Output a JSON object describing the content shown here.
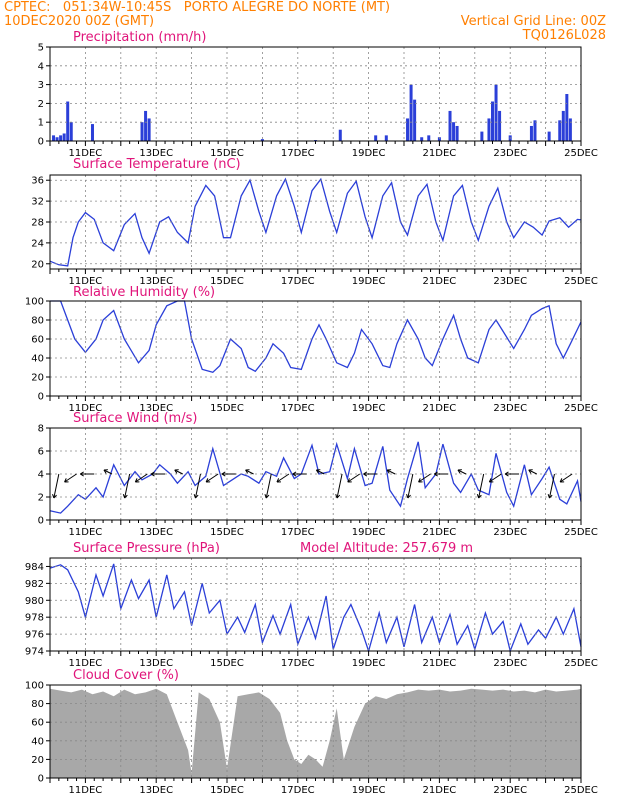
{
  "header": {
    "line1_left": "CPTEC:   051:34W-10:45S   PORTO ALEGRE DO NORTE (MT)",
    "line2_left": "10DEC2020 00Z (GMT)",
    "line2_right": "Vertical Grid Line: 00Z",
    "line3_right": "TQ0126L028"
  },
  "colors": {
    "header": "#ff7f00",
    "title": "#e0147a",
    "line": "#2b3fd8",
    "bar": "#2b3fd8",
    "cloud": "#a8a8a8"
  },
  "x_ticks": [
    "11DEC",
    "13DEC",
    "15DEC",
    "17DEC",
    "19DEC",
    "21DEC",
    "23DEC",
    "25DEC"
  ],
  "chart_data": [
    {
      "type": "bar",
      "title": "Precipitation (mm/h)",
      "ylim": [
        0,
        5
      ],
      "yticks": [
        0,
        1,
        2,
        3,
        4,
        5
      ],
      "x_range_days": [
        10.0,
        25.0
      ],
      "points": [
        [
          10.1,
          0.3
        ],
        [
          10.2,
          0.2
        ],
        [
          10.3,
          0.3
        ],
        [
          10.4,
          0.4
        ],
        [
          10.5,
          2.1
        ],
        [
          10.6,
          1.0
        ],
        [
          11.2,
          0.9
        ],
        [
          12.6,
          1.0
        ],
        [
          12.7,
          1.6
        ],
        [
          12.8,
          1.2
        ],
        [
          16.0,
          0.1
        ],
        [
          17.5,
          0.05
        ],
        [
          18.2,
          0.6
        ],
        [
          19.2,
          0.3
        ],
        [
          19.5,
          0.3
        ],
        [
          20.1,
          1.2
        ],
        [
          20.2,
          3.0
        ],
        [
          20.3,
          2.2
        ],
        [
          20.5,
          0.2
        ],
        [
          20.7,
          0.3
        ],
        [
          21.0,
          0.2
        ],
        [
          21.3,
          1.6
        ],
        [
          21.4,
          1.0
        ],
        [
          21.5,
          0.8
        ],
        [
          22.2,
          0.5
        ],
        [
          22.4,
          1.2
        ],
        [
          22.5,
          2.1
        ],
        [
          22.6,
          3.0
        ],
        [
          22.7,
          1.6
        ],
        [
          23.0,
          0.3
        ],
        [
          23.6,
          0.8
        ],
        [
          23.7,
          1.1
        ],
        [
          24.1,
          0.5
        ],
        [
          24.4,
          1.1
        ],
        [
          24.5,
          1.6
        ],
        [
          24.6,
          2.5
        ],
        [
          24.7,
          1.2
        ]
      ]
    },
    {
      "type": "line",
      "title": "Surface Temperature (nC)",
      "ylim": [
        19,
        37
      ],
      "yticks": [
        20,
        24,
        28,
        32,
        36
      ],
      "x": [
        10.0,
        10.25,
        10.5,
        10.65,
        10.8,
        11.0,
        11.25,
        11.5,
        11.8,
        12.1,
        12.4,
        12.6,
        12.8,
        13.1,
        13.35,
        13.6,
        13.9,
        14.1,
        14.4,
        14.65,
        14.9,
        15.1,
        15.4,
        15.65,
        15.9,
        16.1,
        16.4,
        16.65,
        16.9,
        17.1,
        17.4,
        17.65,
        17.9,
        18.1,
        18.4,
        18.65,
        18.9,
        19.1,
        19.4,
        19.65,
        19.9,
        20.1,
        20.4,
        20.65,
        20.9,
        21.1,
        21.4,
        21.65,
        21.9,
        22.1,
        22.4,
        22.65,
        22.9,
        23.1,
        23.4,
        23.65,
        23.9,
        24.1,
        24.4,
        24.65,
        24.9,
        25.0
      ],
      "y": [
        20.5,
        19.8,
        19.6,
        25.0,
        28.0,
        29.8,
        28.5,
        24.0,
        22.5,
        27.5,
        29.6,
        25.0,
        22.0,
        28.0,
        29.0,
        26.0,
        24.0,
        31.0,
        35.0,
        33.0,
        25.0,
        25.0,
        33.0,
        36.0,
        30.0,
        26.0,
        33.0,
        36.2,
        31.0,
        26.0,
        34.0,
        36.2,
        30.0,
        26.0,
        33.5,
        35.8,
        29.0,
        25.0,
        33.0,
        35.5,
        28.0,
        25.5,
        33.0,
        35.2,
        28.0,
        24.5,
        33.0,
        35.0,
        28.0,
        24.5,
        31.0,
        34.5,
        28.0,
        25.0,
        28.0,
        27.0,
        25.5,
        28.2,
        28.8,
        27.0,
        28.5,
        28.4
      ]
    },
    {
      "type": "line",
      "title": "Relative Humidity (%)",
      "ylim": [
        0,
        100
      ],
      "yticks": [
        0,
        20,
        40,
        60,
        80,
        100
      ],
      "x": [
        10.0,
        10.3,
        10.5,
        10.7,
        11.0,
        11.3,
        11.5,
        11.8,
        12.1,
        12.5,
        12.8,
        13.0,
        13.3,
        13.6,
        13.8,
        14.0,
        14.3,
        14.6,
        14.8,
        15.1,
        15.4,
        15.6,
        15.8,
        16.1,
        16.3,
        16.6,
        16.8,
        17.1,
        17.4,
        17.6,
        17.8,
        18.1,
        18.4,
        18.6,
        18.8,
        19.1,
        19.4,
        19.6,
        19.8,
        20.1,
        20.4,
        20.6,
        20.8,
        21.1,
        21.4,
        21.6,
        21.8,
        22.1,
        22.4,
        22.6,
        22.8,
        23.1,
        23.4,
        23.6,
        23.9,
        24.1,
        24.3,
        24.5,
        24.7,
        25.0
      ],
      "y": [
        100,
        100,
        80,
        60,
        46,
        60,
        80,
        90,
        60,
        35,
        48,
        75,
        95,
        100,
        100,
        60,
        28,
        25,
        32,
        60,
        50,
        30,
        26,
        40,
        55,
        45,
        30,
        28,
        60,
        75,
        60,
        35,
        30,
        45,
        70,
        55,
        32,
        30,
        55,
        80,
        60,
        40,
        32,
        60,
        85,
        60,
        40,
        35,
        70,
        80,
        68,
        50,
        70,
        85,
        92,
        95,
        55,
        40,
        55,
        78
      ]
    },
    {
      "type": "line",
      "title": "Surface Wind (m/s)",
      "ylim": [
        0,
        8
      ],
      "yticks": [
        0,
        2,
        4,
        6,
        8
      ],
      "x": [
        10.0,
        10.3,
        10.5,
        10.8,
        11.0,
        11.3,
        11.5,
        11.8,
        12.1,
        12.4,
        12.6,
        12.9,
        13.1,
        13.4,
        13.6,
        13.9,
        14.1,
        14.4,
        14.6,
        14.9,
        15.1,
        15.4,
        15.6,
        15.9,
        16.1,
        16.4,
        16.6,
        16.9,
        17.1,
        17.4,
        17.6,
        17.9,
        18.1,
        18.4,
        18.6,
        18.9,
        19.1,
        19.4,
        19.6,
        19.9,
        20.1,
        20.4,
        20.6,
        20.9,
        21.1,
        21.4,
        21.6,
        21.9,
        22.1,
        22.4,
        22.6,
        22.9,
        23.1,
        23.4,
        23.6,
        23.9,
        24.1,
        24.4,
        24.6,
        24.9,
        25.0
      ],
      "y": [
        0.8,
        0.6,
        1.2,
        2.2,
        1.8,
        2.8,
        2.0,
        4.8,
        3.0,
        4.2,
        3.5,
        4.0,
        4.8,
        4.0,
        3.2,
        4.2,
        3.0,
        3.8,
        6.2,
        3.0,
        3.4,
        4.0,
        3.8,
        3.2,
        4.2,
        3.8,
        5.4,
        3.6,
        4.0,
        6.5,
        4.0,
        4.2,
        6.6,
        3.6,
        6.2,
        3.0,
        3.2,
        6.4,
        2.6,
        1.2,
        3.6,
        6.8,
        2.8,
        4.0,
        6.6,
        3.2,
        2.4,
        4.0,
        2.6,
        2.2,
        5.8,
        2.4,
        1.2,
        4.8,
        2.2,
        3.6,
        4.6,
        1.8,
        1.4,
        3.4,
        1.6
      ]
    },
    {
      "type": "line",
      "title": "Surface Pressure (hPa)",
      "annotation": "Model Altitude: 257.679  m",
      "ylim": [
        974,
        985
      ],
      "yticks": [
        974,
        976,
        978,
        980,
        982,
        984
      ],
      "x": [
        10.0,
        10.3,
        10.5,
        10.8,
        11.0,
        11.3,
        11.5,
        11.8,
        12.0,
        12.3,
        12.5,
        12.8,
        13.0,
        13.3,
        13.5,
        13.8,
        14.0,
        14.3,
        14.5,
        14.8,
        15.0,
        15.3,
        15.5,
        15.8,
        16.0,
        16.3,
        16.5,
        16.8,
        17.0,
        17.3,
        17.5,
        17.8,
        18.0,
        18.3,
        18.5,
        18.8,
        19.0,
        19.3,
        19.5,
        19.8,
        20.0,
        20.3,
        20.5,
        20.8,
        21.0,
        21.3,
        21.5,
        21.8,
        22.0,
        22.3,
        22.5,
        22.8,
        23.0,
        23.3,
        23.5,
        23.8,
        24.0,
        24.3,
        24.5,
        24.8,
        25.0
      ],
      "y": [
        983.8,
        984.2,
        983.6,
        981.0,
        978.0,
        983.0,
        980.5,
        984.3,
        979.0,
        982.4,
        980.2,
        982.4,
        978.0,
        983.0,
        979.0,
        981.0,
        977.0,
        982.0,
        978.5,
        980.0,
        976.0,
        978.0,
        976.2,
        979.5,
        975.0,
        978.2,
        976.0,
        979.5,
        974.8,
        978.0,
        975.5,
        980.5,
        974.2,
        978.0,
        979.5,
        976.5,
        974.0,
        978.5,
        975.0,
        978.0,
        974.5,
        979.5,
        975.0,
        978.0,
        975.0,
        978.3,
        974.8,
        977.0,
        974.2,
        978.5,
        976.0,
        977.5,
        974.0,
        977.2,
        974.8,
        976.5,
        975.5,
        978.0,
        976.0,
        979.0,
        974.5
      ]
    },
    {
      "type": "area",
      "title": "Cloud Cover (%)",
      "ylim": [
        0,
        100
      ],
      "yticks": [
        0,
        20,
        40,
        60,
        80,
        100
      ],
      "x": [
        10.0,
        10.3,
        10.6,
        10.9,
        11.2,
        11.5,
        11.8,
        12.1,
        12.4,
        12.7,
        13.0,
        13.3,
        13.6,
        13.9,
        14.0,
        14.2,
        14.5,
        14.8,
        15.0,
        15.3,
        15.6,
        15.9,
        16.2,
        16.5,
        16.7,
        16.9,
        17.1,
        17.3,
        17.5,
        17.7,
        17.9,
        18.1,
        18.3,
        18.6,
        18.9,
        19.2,
        19.5,
        19.8,
        20.1,
        20.4,
        20.7,
        21.0,
        21.3,
        21.6,
        21.9,
        22.2,
        22.5,
        22.8,
        23.1,
        23.4,
        23.7,
        24.0,
        24.3,
        24.6,
        24.9,
        25.0
      ],
      "y": [
        96,
        94,
        92,
        95,
        90,
        93,
        88,
        95,
        90,
        92,
        96,
        90,
        60,
        30,
        5,
        92,
        85,
        60,
        10,
        88,
        90,
        92,
        85,
        70,
        40,
        20,
        15,
        25,
        20,
        12,
        40,
        75,
        20,
        55,
        80,
        88,
        85,
        90,
        92,
        95,
        94,
        95,
        93,
        94,
        96,
        95,
        94,
        95,
        93,
        94,
        92,
        95,
        93,
        94,
        95,
        96
      ]
    }
  ]
}
